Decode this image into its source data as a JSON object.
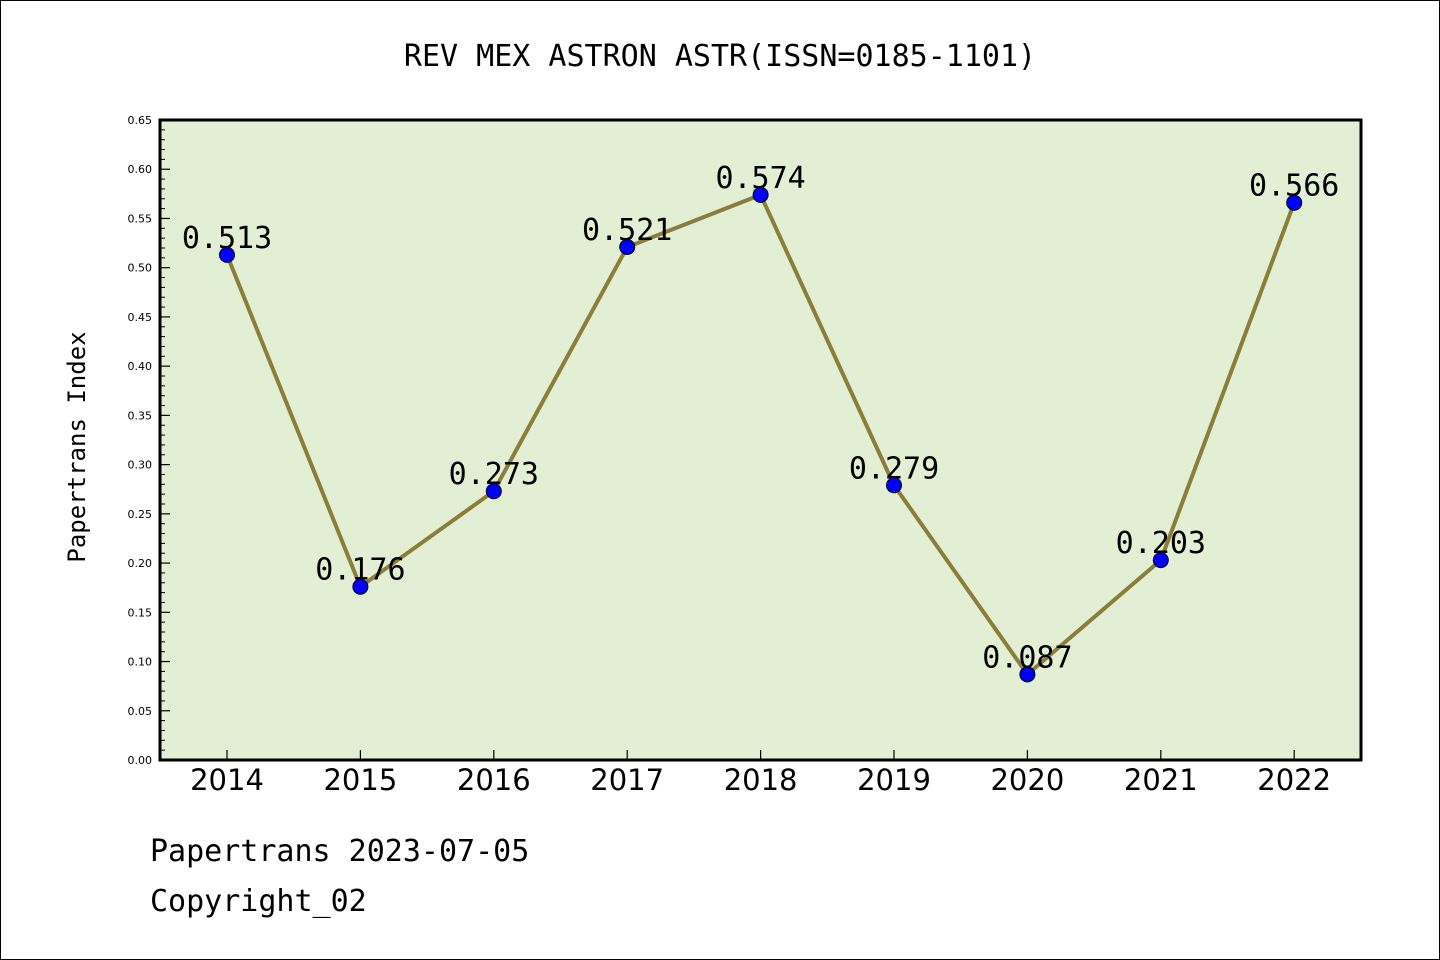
{
  "footer": {
    "line1": "Papertrans 2023-07-05",
    "line2": "Copyright_02"
  },
  "chart_data": {
    "type": "line",
    "title": "REV MEX ASTRON ASTR(ISSN=0185-1101)",
    "xlabel": "",
    "ylabel": "Papertrans Index",
    "categories": [
      "2014",
      "2015",
      "2016",
      "2017",
      "2018",
      "2019",
      "2020",
      "2021",
      "2022"
    ],
    "series": [
      {
        "values": [
          0.513,
          0.176,
          0.273,
          0.521,
          0.574,
          0.279,
          0.087,
          0.203,
          0.566
        ],
        "data_labels": [
          "0.513",
          "0.176",
          "0.273",
          "0.521",
          "0.574",
          "0.279",
          "0.087",
          "0.203",
          "0.566"
        ],
        "line_color": "#8b7d3a",
        "marker_color": "#0000ff"
      }
    ],
    "ylim": [
      0,
      0.65
    ],
    "yticks": [
      "0.00",
      "0.05",
      "0.10",
      "0.15",
      "0.20",
      "0.25",
      "0.30",
      "0.35",
      "0.40",
      "0.45",
      "0.50",
      "0.55",
      "0.60",
      "0.65"
    ],
    "plot_background": "#e2efd5",
    "grid": false,
    "legend": "none"
  }
}
